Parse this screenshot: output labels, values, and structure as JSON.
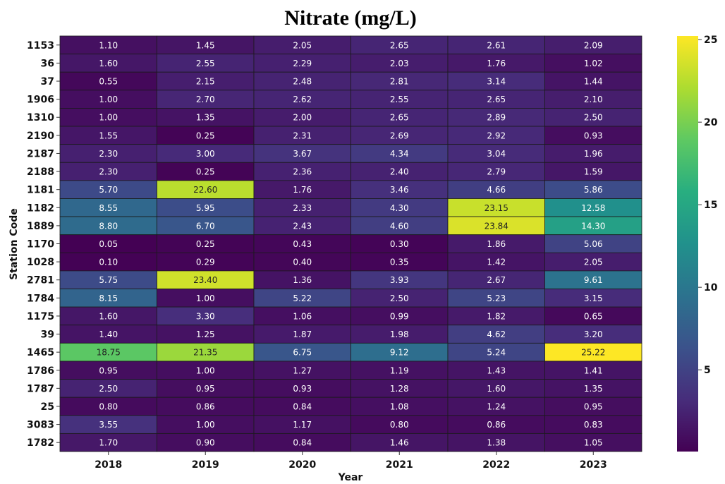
{
  "chart_data": {
    "type": "heatmap",
    "title": "Nitrate (mg/L)",
    "x_label": "Year",
    "y_label": "Station Code",
    "x_categories": [
      "2018",
      "2019",
      "2020",
      "2021",
      "2022",
      "2023"
    ],
    "y_categories": [
      "1153",
      "36",
      "37",
      "1906",
      "1310",
      "2190",
      "2187",
      "2188",
      "1181",
      "1182",
      "1889",
      "1170",
      "1028",
      "2781",
      "1784",
      "1175",
      "39",
      "1465",
      "1786",
      "1787",
      "25",
      "3083",
      "1782"
    ],
    "values": [
      [
        1.1,
        1.45,
        2.05,
        2.65,
        2.61,
        2.09
      ],
      [
        1.6,
        2.55,
        2.29,
        2.03,
        1.76,
        1.02
      ],
      [
        0.55,
        2.15,
        2.48,
        2.81,
        3.14,
        1.44
      ],
      [
        1.0,
        2.7,
        2.62,
        2.55,
        2.65,
        2.1
      ],
      [
        1.0,
        1.35,
        2.0,
        2.65,
        2.89,
        2.5
      ],
      [
        1.55,
        0.25,
        2.31,
        2.69,
        2.92,
        0.93
      ],
      [
        2.3,
        3.0,
        3.67,
        4.34,
        3.04,
        1.96
      ],
      [
        2.3,
        0.25,
        2.36,
        2.4,
        2.79,
        1.59
      ],
      [
        5.7,
        22.6,
        1.76,
        3.46,
        4.66,
        5.86
      ],
      [
        8.55,
        5.95,
        2.33,
        4.3,
        23.15,
        12.58
      ],
      [
        8.8,
        6.7,
        2.43,
        4.6,
        23.84,
        14.3
      ],
      [
        0.05,
        0.25,
        0.43,
        0.3,
        1.86,
        5.06
      ],
      [
        0.1,
        0.29,
        0.4,
        0.35,
        1.42,
        2.05
      ],
      [
        5.75,
        23.4,
        1.36,
        3.93,
        2.67,
        9.61
      ],
      [
        8.15,
        1.0,
        5.22,
        2.5,
        5.23,
        3.15
      ],
      [
        1.6,
        3.3,
        1.06,
        0.99,
        1.82,
        0.65
      ],
      [
        1.4,
        1.25,
        1.87,
        1.98,
        4.62,
        3.2
      ],
      [
        18.75,
        21.35,
        6.75,
        9.12,
        5.24,
        25.22
      ],
      [
        0.95,
        1.0,
        1.27,
        1.19,
        1.43,
        1.41
      ],
      [
        2.5,
        0.95,
        0.93,
        1.28,
        1.6,
        1.35
      ],
      [
        0.8,
        0.86,
        0.84,
        1.08,
        1.24,
        0.95
      ],
      [
        3.55,
        1.0,
        1.17,
        0.8,
        0.86,
        0.83
      ],
      [
        1.7,
        0.9,
        0.84,
        1.46,
        1.38,
        1.05
      ]
    ],
    "value_labels": [
      [
        "1.10",
        "1.45",
        "2.05",
        "2.65",
        "2.61",
        "2.09"
      ],
      [
        "1.60",
        "2.55",
        "2.29",
        "2.03",
        "1.76",
        "1.02"
      ],
      [
        "0.55",
        "2.15",
        "2.48",
        "2.81",
        "3.14",
        "1.44"
      ],
      [
        "1.00",
        "2.70",
        "2.62",
        "2.55",
        "2.65",
        "2.10"
      ],
      [
        "1.00",
        "1.35",
        "2.00",
        "2.65",
        "2.89",
        "2.50"
      ],
      [
        "1.55",
        "0.25",
        "2.31",
        "2.69",
        "2.92",
        "0.93"
      ],
      [
        "2.30",
        "3.00",
        "3.67",
        "4.34",
        "3.04",
        "1.96"
      ],
      [
        "2.30",
        "0.25",
        "2.36",
        "2.40",
        "2.79",
        "1.59"
      ],
      [
        "5.70",
        "22.60",
        "1.76",
        "3.46",
        "4.66",
        "5.86"
      ],
      [
        "8.55",
        "5.95",
        "2.33",
        "4.30",
        "23.15",
        "12.58"
      ],
      [
        "8.80",
        "6.70",
        "2.43",
        "4.60",
        "23.84",
        "14.30"
      ],
      [
        "0.05",
        "0.25",
        "0.43",
        "0.30",
        "1.86",
        "5.06"
      ],
      [
        "0.10",
        "0.29",
        "0.40",
        "0.35",
        "1.42",
        "2.05"
      ],
      [
        "5.75",
        "23.40",
        "1.36",
        "3.93",
        "2.67",
        "9.61"
      ],
      [
        "8.15",
        "1.00",
        "5.22",
        "2.50",
        "5.23",
        "3.15"
      ],
      [
        "1.60",
        "3.30",
        "1.06",
        "0.99",
        "1.82",
        "0.65"
      ],
      [
        "1.40",
        "1.25",
        "1.87",
        "1.98",
        "4.62",
        "3.20"
      ],
      [
        "18.75",
        "21.35",
        "6.75",
        "9.12",
        "5.24",
        "25.22"
      ],
      [
        "0.95",
        "1.00",
        "1.27",
        "1.19",
        "1.43",
        "1.41"
      ],
      [
        "2.50",
        "0.95",
        "0.93",
        "1.28",
        "1.60",
        "1.35"
      ],
      [
        "0.80",
        "0.86",
        "0.84",
        "1.08",
        "1.24",
        "0.95"
      ],
      [
        "3.55",
        "1.00",
        "1.17",
        "0.80",
        "0.86",
        "0.83"
      ],
      [
        "1.70",
        "0.90",
        "0.84",
        "1.46",
        "1.38",
        "1.05"
      ]
    ],
    "colormap": "viridis",
    "clim": [
      0.05,
      25.22
    ],
    "cticks": [
      5,
      10,
      15,
      20,
      25
    ]
  }
}
